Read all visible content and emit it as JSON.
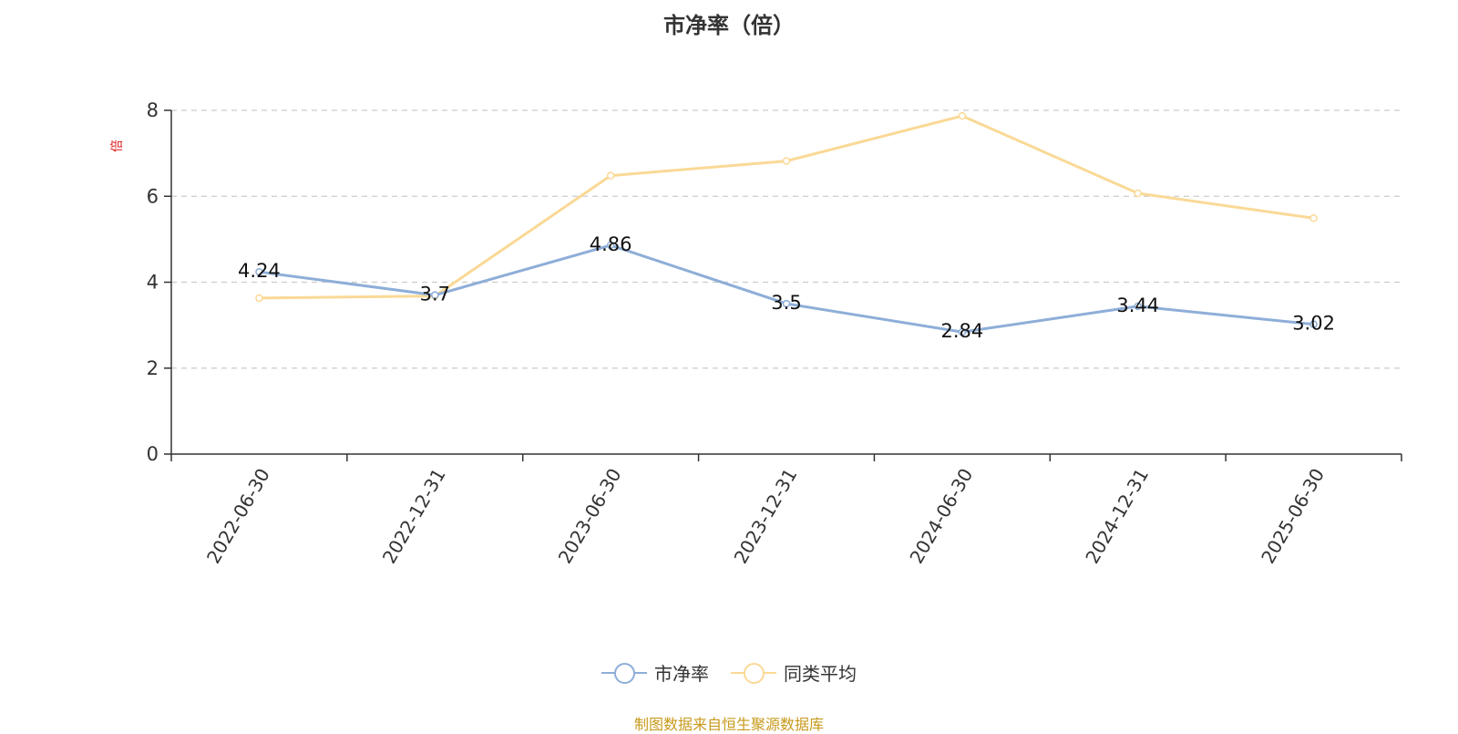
{
  "chart_data": {
    "type": "line",
    "title": "市净率（倍）",
    "ylabel": "倍",
    "xlabel": "",
    "categories": [
      "2022-06-30",
      "2022-12-31",
      "2023-06-30",
      "2023-12-31",
      "2024-06-30",
      "2024-12-31",
      "2025-06-30"
    ],
    "series": [
      {
        "name": "市净率",
        "color": "#8eaed8",
        "values": [
          4.24,
          3.7,
          4.86,
          3.5,
          2.84,
          3.44,
          3.02
        ],
        "show_labels": true
      },
      {
        "name": "同类平均",
        "color": "#fad996",
        "values": [
          3.63,
          3.68,
          6.48,
          6.82,
          7.87,
          6.07,
          5.49
        ],
        "show_labels": false
      }
    ],
    "ylim": [
      0,
      8
    ],
    "yticks": [
      0,
      2,
      4,
      6,
      8
    ],
    "grid": true,
    "legend": "bottom-center"
  },
  "source_note": "制图数据来自恒生聚源数据库"
}
